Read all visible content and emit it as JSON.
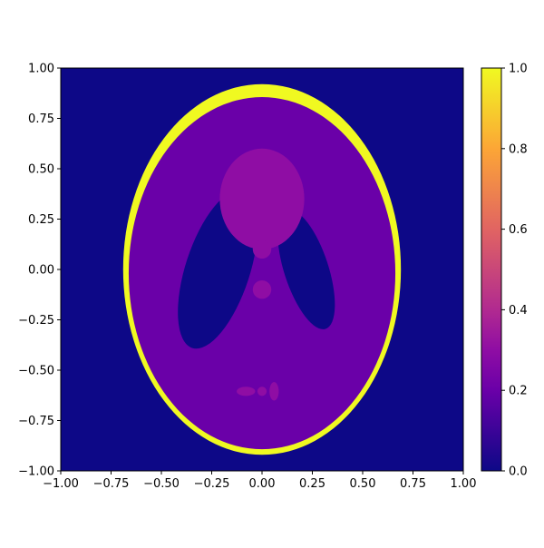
{
  "chart_data": {
    "type": "heatmap",
    "title": "",
    "xlabel": "",
    "ylabel": "",
    "xlim": [
      -1.0,
      1.0
    ],
    "ylim": [
      -1.0,
      1.0
    ],
    "xticks": [
      -1.0,
      -0.75,
      -0.5,
      -0.25,
      0.0,
      0.25,
      0.5,
      0.75,
      1.0
    ],
    "yticks": [
      -1.0,
      -0.75,
      -0.5,
      -0.25,
      0.0,
      0.25,
      0.5,
      0.75,
      1.0
    ],
    "xtick_labels": [
      "−1.00",
      "−0.75",
      "−0.50",
      "−0.25",
      "0.00",
      "0.25",
      "0.50",
      "0.75",
      "1.00"
    ],
    "ytick_labels": [
      "−1.00",
      "−0.75",
      "−0.50",
      "−0.25",
      "0.00",
      "0.25",
      "0.50",
      "0.75",
      "1.00"
    ],
    "colormap": "plasma",
    "background_value": 0.0,
    "ellipses": [
      {
        "name": "outer-skull",
        "cx": 0.0,
        "cy": 0.0,
        "a": 0.69,
        "b": 0.92,
        "angle_deg": 0,
        "value": 1.0
      },
      {
        "name": "brain",
        "cx": 0.0,
        "cy": -0.0184,
        "a": 0.6624,
        "b": 0.874,
        "angle_deg": 0,
        "value": 0.2
      },
      {
        "name": "left-ventricle",
        "cx": -0.22,
        "cy": 0.0,
        "a": 0.16,
        "b": 0.41,
        "angle_deg": -18,
        "value": 0.0
      },
      {
        "name": "right-ventricle",
        "cx": 0.22,
        "cy": 0.0,
        "a": 0.11,
        "b": 0.31,
        "angle_deg": 18,
        "value": 0.0
      },
      {
        "name": "upper-blob",
        "cx": 0.0,
        "cy": 0.35,
        "a": 0.21,
        "b": 0.25,
        "angle_deg": 0,
        "value": 0.3
      },
      {
        "name": "small-center-upper",
        "cx": 0.0,
        "cy": 0.1,
        "a": 0.046,
        "b": 0.046,
        "angle_deg": 0,
        "value": 0.3
      },
      {
        "name": "small-center-lower",
        "cx": 0.0,
        "cy": -0.1,
        "a": 0.046,
        "b": 0.046,
        "angle_deg": 0,
        "value": 0.3
      },
      {
        "name": "bottom-left-dot",
        "cx": -0.08,
        "cy": -0.605,
        "a": 0.046,
        "b": 0.023,
        "angle_deg": 0,
        "value": 0.3
      },
      {
        "name": "bottom-center-dot",
        "cx": 0.0,
        "cy": -0.605,
        "a": 0.023,
        "b": 0.023,
        "angle_deg": 0,
        "value": 0.3
      },
      {
        "name": "bottom-right-dot",
        "cx": 0.06,
        "cy": -0.605,
        "a": 0.023,
        "b": 0.046,
        "angle_deg": 0,
        "value": 0.3
      }
    ],
    "colorbar": {
      "min": 0.0,
      "max": 1.0,
      "ticks": [
        0.0,
        0.2,
        0.4,
        0.6,
        0.8,
        1.0
      ],
      "tick_labels": [
        "0.0",
        "0.2",
        "0.4",
        "0.6",
        "0.8",
        "1.0"
      ],
      "colors": {
        "0.0": "#0d0887",
        "0.2": "#6a00a8",
        "0.3": "#8f0da4",
        "0.4": "#b12a90",
        "0.6": "#e16462",
        "0.8": "#fca636",
        "1.0": "#f0f921"
      }
    }
  }
}
